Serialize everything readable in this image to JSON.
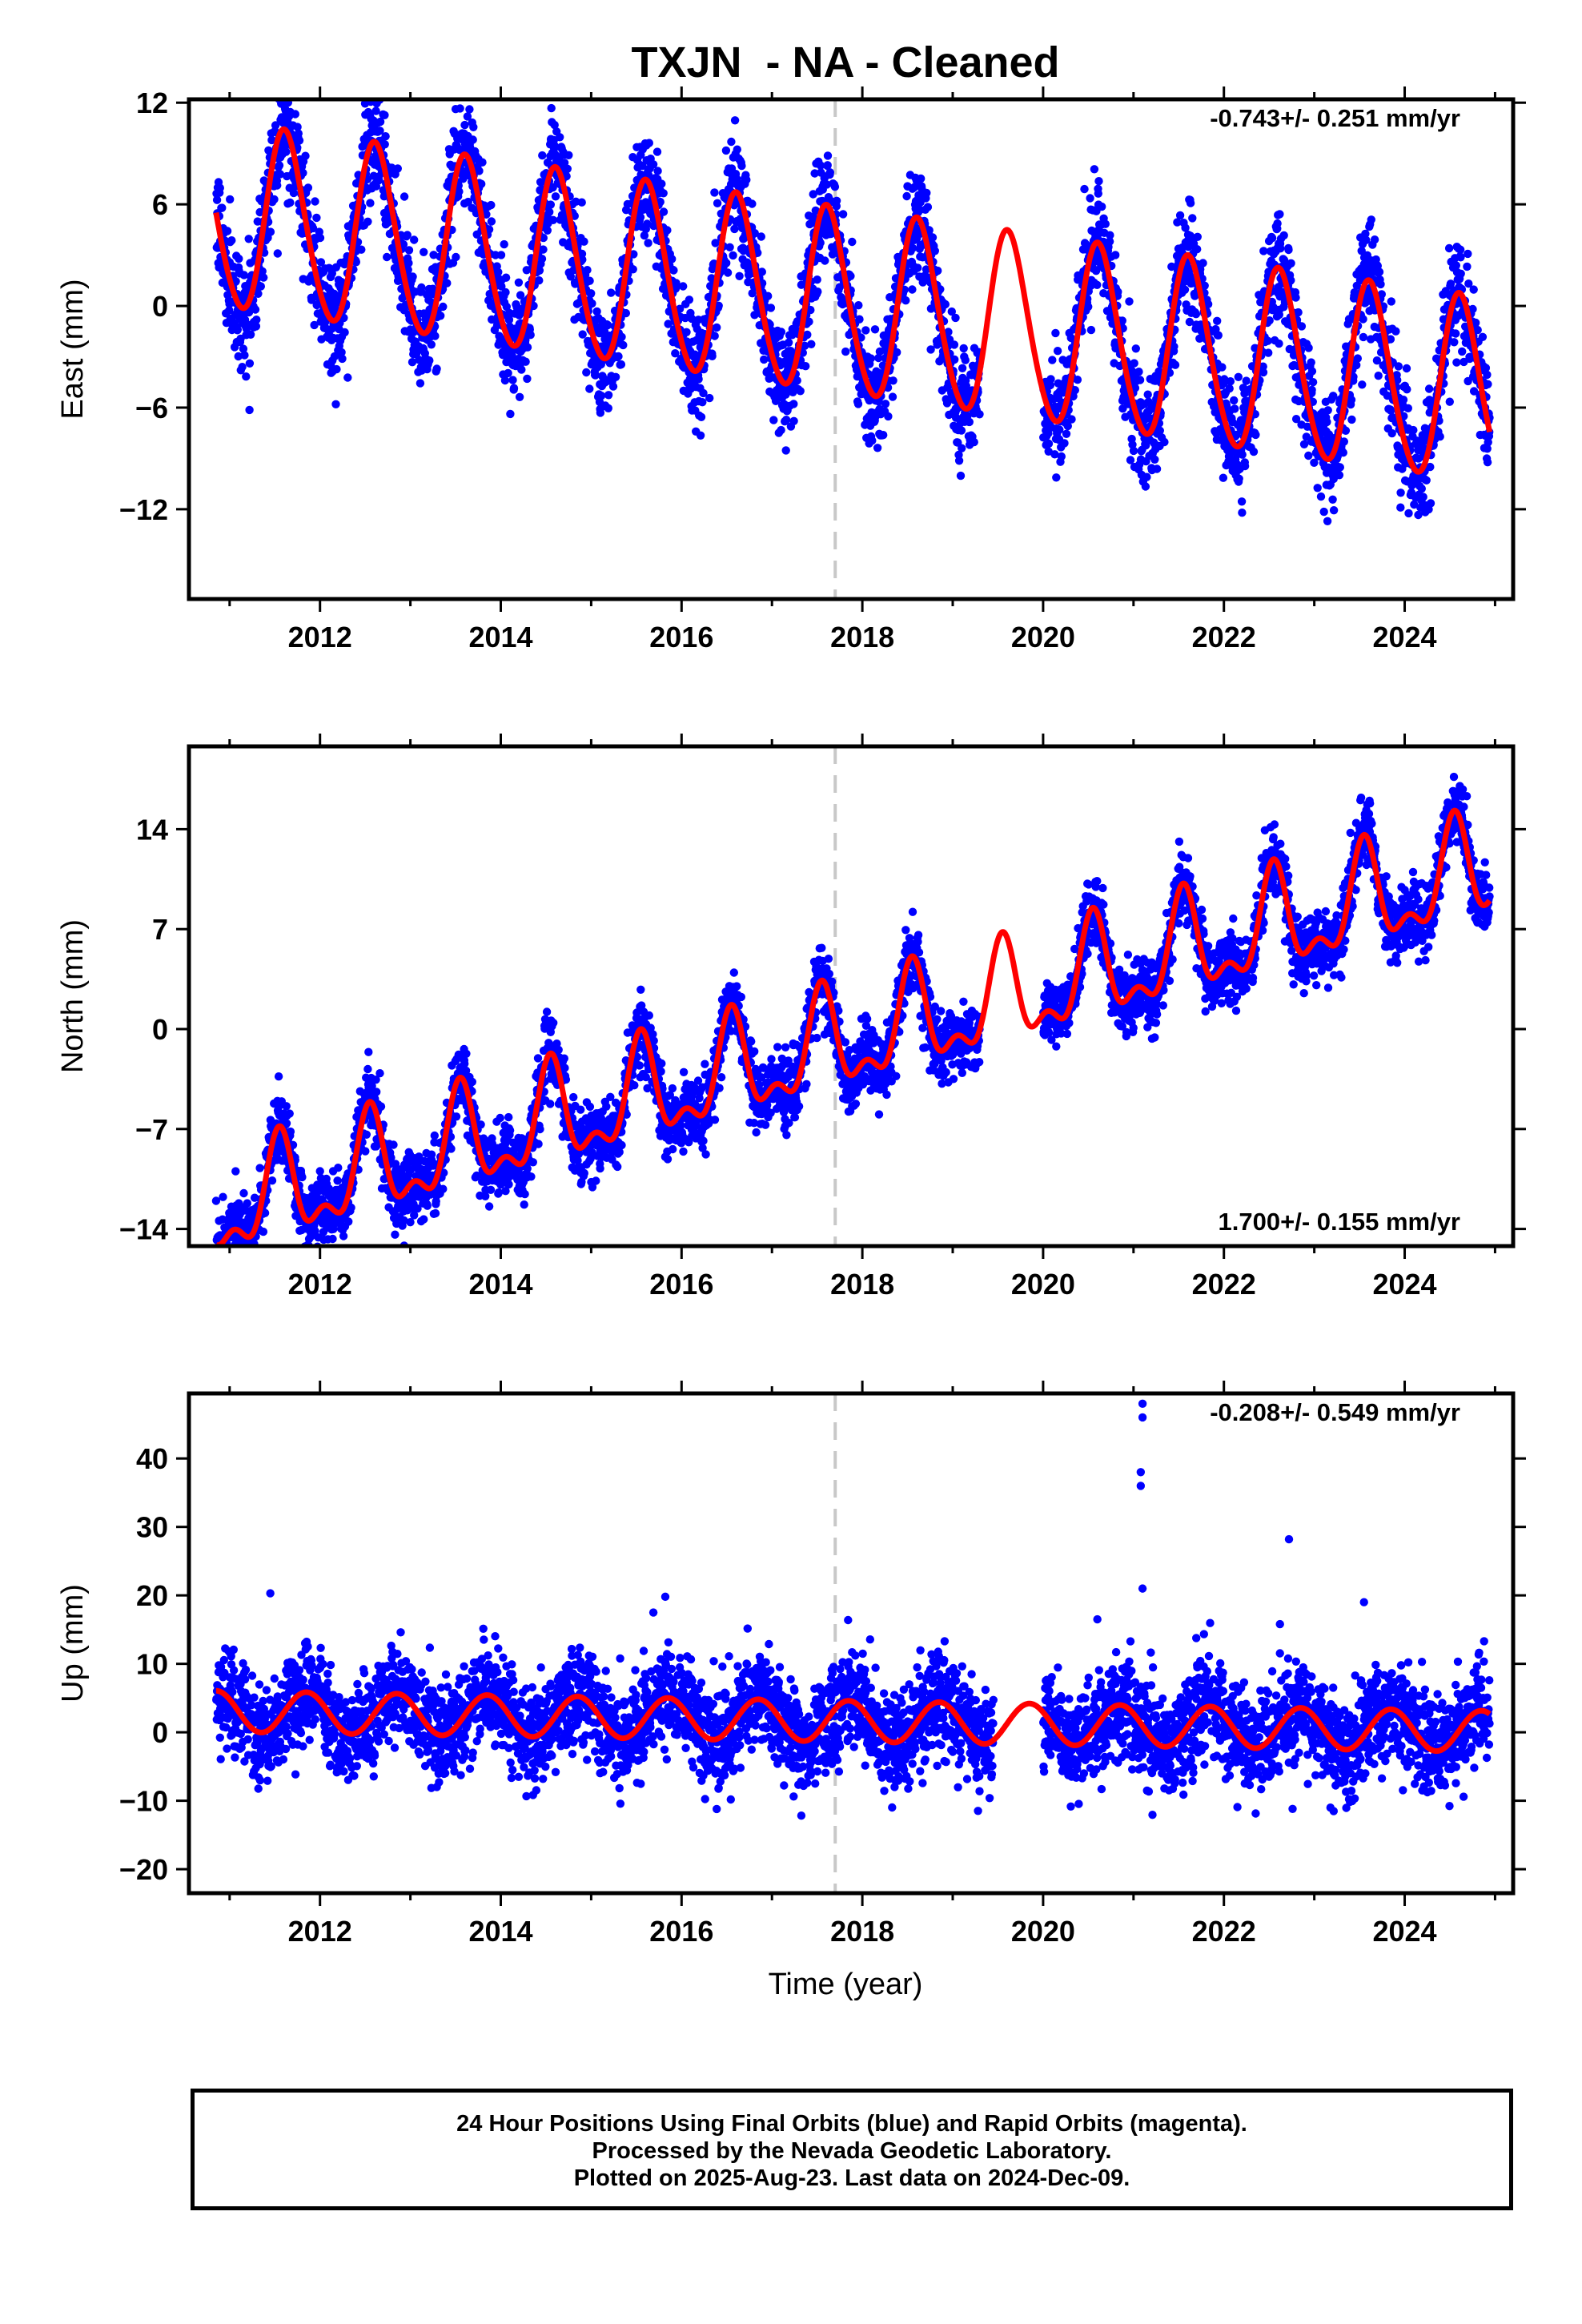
{
  "title": "TXJN  - NA - Cleaned",
  "xlabel": "Time (year)",
  "caption": [
    "24 Hour Positions Using Final Orbits (blue) and Rapid Orbits (magenta).",
    "Processed by the Nevada Geodetic Laboratory.",
    "Plotted on 2025-Aug-23. Last data on 2024-Dec-09."
  ],
  "colors": {
    "data": "#0000ff",
    "model": "#ff0000",
    "event_line": "#c8c8c8",
    "frame": "#000000"
  },
  "chart_data": [
    {
      "type": "scatter",
      "ylabel": "East (mm)",
      "rate": "-0.743+/- 0.251 mm/yr",
      "rate_position": "top-right",
      "xlim": [
        2010.55,
        2025.2
      ],
      "ylim": [
        -17.3,
        12.2
      ],
      "xticks": [
        2012,
        2014,
        2016,
        2018,
        2020,
        2022,
        2024
      ],
      "yticks": [
        -12,
        -6,
        0,
        6,
        12
      ],
      "ytick_labels": [
        "−12",
        "−6",
        "0",
        "6",
        "12"
      ],
      "event_line_x": 2017.7,
      "data_range": [
        2010.85,
        2024.94
      ],
      "data_gap": [
        2019.3,
        2020.0
      ],
      "model": {
        "offset": 0.0,
        "rate": -0.743,
        "t0": 2017.9,
        "annual_amp": 5.4,
        "annual_peak": 0.62,
        "semi_amp": 0.5,
        "semi_peak": 0.55
      },
      "scatter_sigma": 1.6
    },
    {
      "type": "scatter",
      "ylabel": "North (mm)",
      "rate": "1.700+/- 0.155 mm/yr",
      "rate_position": "bottom-right",
      "xlim": [
        2010.55,
        2025.2
      ],
      "ylim": [
        -15.2,
        19.8
      ],
      "xticks": [
        2012,
        2014,
        2016,
        2018,
        2020,
        2022,
        2024
      ],
      "yticks": [
        -14,
        -7,
        0,
        7,
        14
      ],
      "ytick_labels": [
        "−14",
        "−7",
        "0",
        "7",
        "14"
      ],
      "event_line_x": 2017.7,
      "data_range": [
        2010.85,
        2024.94
      ],
      "data_gap": [
        2019.3,
        2020.0
      ],
      "model": {
        "offset": -0.8,
        "rate": 1.7,
        "t0": 2017.9,
        "annual_amp": 3.2,
        "annual_peak": 0.55,
        "semi_amp": 1.6,
        "semi_peak": 0.55
      },
      "scatter_sigma": 1.2
    },
    {
      "type": "scatter",
      "ylabel": "Up (mm)",
      "rate": "-0.208+/- 0.549 mm/yr",
      "rate_position": "top-right",
      "xlim": [
        2010.55,
        2025.2
      ],
      "ylim": [
        -23.5,
        49.5
      ],
      "xticks": [
        2012,
        2014,
        2016,
        2018,
        2020,
        2022,
        2024
      ],
      "yticks": [
        -20,
        -10,
        0,
        10,
        20,
        30,
        40
      ],
      "ytick_labels": [
        "−20",
        "−10",
        "0",
        "10",
        "20",
        "30",
        "40"
      ],
      "event_line_x": 2017.7,
      "data_range": [
        2010.85,
        2024.94
      ],
      "data_gap": [
        2019.45,
        2020.0
      ],
      "model": {
        "offset": 1.6,
        "rate": -0.208,
        "t0": 2017.9,
        "annual_amp": 3.0,
        "annual_peak": 0.85,
        "semi_amp": 0.0,
        "semi_peak": 0.0
      },
      "scatter_sigma": 3.6,
      "outliers": [
        {
          "x": 2021.1,
          "y": 48.0
        },
        {
          "x": 2021.1,
          "y": 46.0
        },
        {
          "x": 2021.08,
          "y": 38.0
        },
        {
          "x": 2021.08,
          "y": 36.0
        },
        {
          "x": 2021.1,
          "y": 21.0
        },
        {
          "x": 2022.72,
          "y": 28.2
        },
        {
          "x": 2023.55,
          "y": 19.0
        },
        {
          "x": 2015.82,
          "y": 19.8
        },
        {
          "x": 2011.45,
          "y": 20.3
        },
        {
          "x": 2022.62,
          "y": 15.8
        },
        {
          "x": 2020.6,
          "y": 16.5
        }
      ]
    }
  ]
}
